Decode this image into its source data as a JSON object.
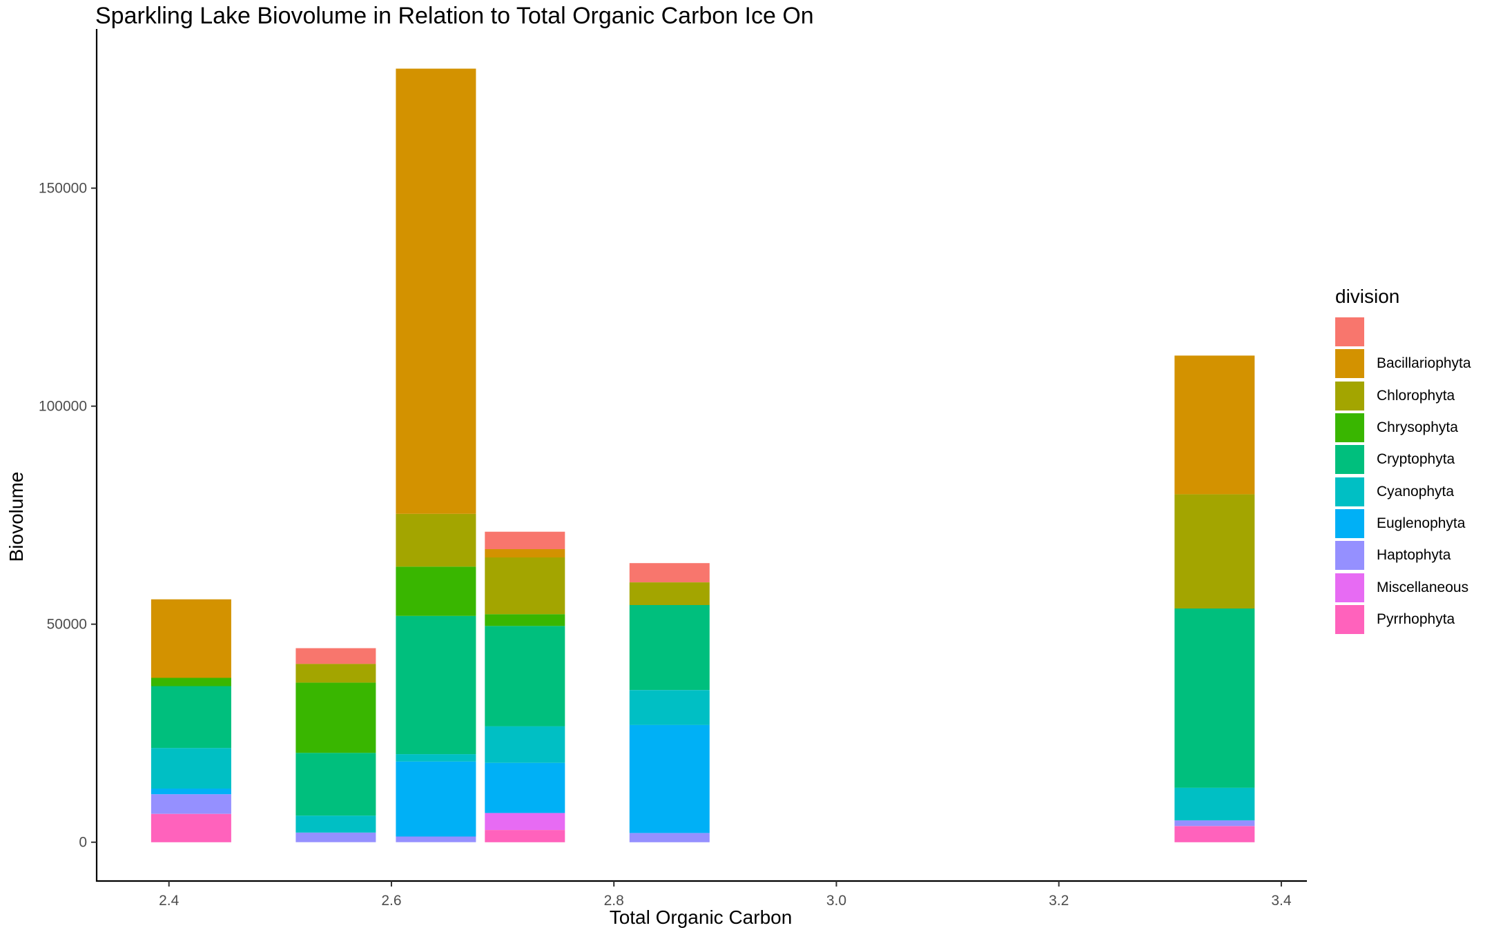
{
  "chart_data": {
    "type": "bar",
    "stacked": true,
    "title": "Sparkling Lake Biovolume in Relation to Total Organic Carbon Ice On",
    "xlabel": "Total Organic Carbon",
    "ylabel": "Biovolume",
    "xlim": [
      2.335,
      3.423
    ],
    "ylim": [
      -8900,
      186500
    ],
    "x_ticks": [
      "2.4",
      "2.6",
      "2.8",
      "3.0",
      "3.2",
      "3.4"
    ],
    "y_ticks": [
      "0",
      "50000",
      "100000",
      "150000"
    ],
    "bar_width": 0.072,
    "grid": false,
    "legend": {
      "title": "division",
      "position": "right",
      "entries": [
        "",
        "Bacillariophyta",
        "Chlorophyta",
        "Chrysophyta",
        "Cryptophyta",
        "Cyanophyta",
        "Euglenophyta",
        "Haptophyta",
        "Miscellaneous",
        "Pyrrhophyta"
      ]
    },
    "colors": {
      "": "#F8766D",
      "Bacillariophyta": "#D39200",
      "Chlorophyta": "#A3A500",
      "Chrysophyta": "#39B600",
      "Cryptophyta": "#00BF7D",
      "Cyanophyta": "#00BFC4",
      "Euglenophyta": "#00B0F6",
      "Haptophyta": "#9590FF",
      "Miscellaneous": "#E76BF3",
      "Pyrrhophyta": "#FF62BC"
    },
    "stack_order_bottom_to_top": [
      "Pyrrhophyta",
      "Miscellaneous",
      "Haptophyta",
      "Euglenophyta",
      "Cyanophyta",
      "Cryptophyta",
      "Chrysophyta",
      "Chlorophyta",
      "Bacillariophyta",
      ""
    ],
    "bars": [
      {
        "x": 2.42,
        "values": {
          "Pyrrhophyta": 6500,
          "Haptophyta": 4500,
          "Euglenophyta": 1300,
          "Cyanophyta": 9300,
          "Cryptophyta": 14200,
          "Chrysophyta": 1900,
          "Bacillariophyta": 18000
        }
      },
      {
        "x": 2.55,
        "values": {
          "Haptophyta": 2200,
          "Cyanophyta": 3900,
          "Cryptophyta": 14400,
          "Chrysophyta": 16100,
          "Chlorophyta": 4300,
          "": 3600
        }
      },
      {
        "x": 2.64,
        "values": {
          "Haptophyta": 1300,
          "Euglenophyta": 17200,
          "Cyanophyta": 1700,
          "Cryptophyta": 31700,
          "Chrysophyta": 11300,
          "Chlorophyta": 12100,
          "Bacillariophyta": 102100
        }
      },
      {
        "x": 2.72,
        "values": {
          "Pyrrhophyta": 2800,
          "Miscellaneous": 3900,
          "Euglenophyta": 11500,
          "Cyanophyta": 8400,
          "Cryptophyta": 23000,
          "Chrysophyta": 2700,
          "Chlorophyta": 13000,
          "Bacillariophyta": 1900,
          "": 4000
        }
      },
      {
        "x": 2.85,
        "values": {
          "Haptophyta": 2100,
          "Euglenophyta": 24800,
          "Cyanophyta": 8000,
          "Cryptophyta": 19500,
          "Chlorophyta": 5200,
          "": 4400
        }
      },
      {
        "x": 3.34,
        "values": {
          "Pyrrhophyta": 3700,
          "Haptophyta": 1300,
          "Cyanophyta": 7500,
          "Cryptophyta": 41100,
          "Chlorophyta": 26200,
          "Bacillariophyta": 31800
        }
      }
    ]
  }
}
